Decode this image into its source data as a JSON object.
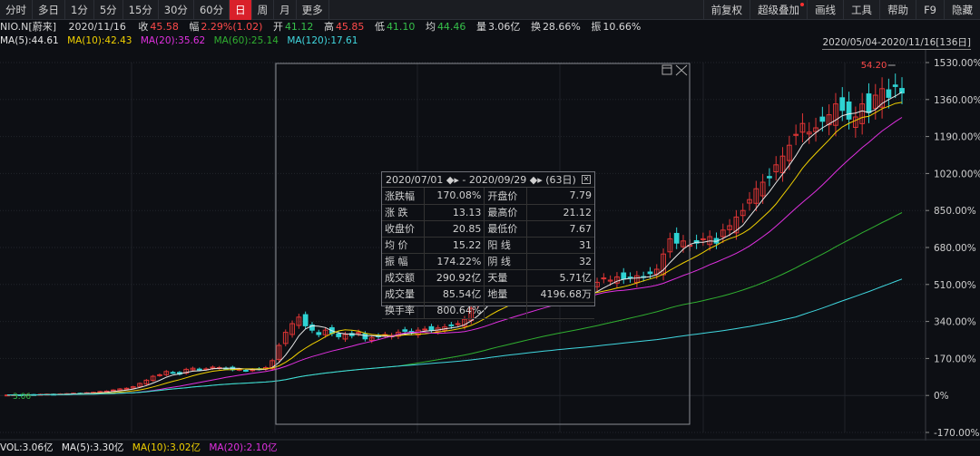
{
  "toolbar": {
    "periods": [
      "分时",
      "多日",
      "1分",
      "5分",
      "15分",
      "30分",
      "60分",
      "日",
      "周",
      "月",
      "更多"
    ],
    "active_period": "日",
    "right_items": [
      "前复权",
      "超级叠加",
      "画线",
      "工具",
      "帮助",
      "F9",
      "隐藏"
    ]
  },
  "quote": {
    "symbol": "NIO.N[蔚来]",
    "date": "2020/11/16",
    "close_label": "收",
    "close": "45.58",
    "change_label": "幅",
    "change": "2.29%(1.02)",
    "open_label": "开",
    "open": "41.12",
    "high_label": "高",
    "high": "45.85",
    "low_label": "低",
    "low": "41.10",
    "avg_label": "均",
    "avg": "44.46",
    "volume_label": "量",
    "volume": "3.06亿",
    "turnover_label": "换",
    "turnover": "28.66%",
    "amplitude_label": "振",
    "amplitude": "10.66%"
  },
  "ma_line": {
    "ma5": "MA(5):44.61",
    "ma10": "MA(10):42.43",
    "ma20": "MA(20):35.62",
    "ma60": "MA(60):25.14",
    "ma120": "MA(120):17.61"
  },
  "range_label": "2020/05/04-2020/11/16[136日]",
  "vol_line": {
    "vol": "VOL:3.06亿",
    "ma5": "MA(5):3.30亿",
    "ma10": "MA(10):3.02亿",
    "ma20": "MA(20):2.10亿"
  },
  "colors": {
    "up": "#ff4a4a",
    "down": "#36c04a",
    "candle_up": "#e03535",
    "candle_down": "#2fd3d3",
    "ma5": "#e8e8e8",
    "ma10": "#f0d000",
    "ma20": "#e030e0",
    "ma60": "#30b030",
    "ma120": "#40d8e0"
  },
  "popup": {
    "range": "2020/07/01 ◆▸ - 2020/09/29 ◆▸ (63日)",
    "rows": [
      {
        "k1": "涨跌幅",
        "v1": "170.08%",
        "c1": "r",
        "k2": "开盘价",
        "v2": "7.79",
        "c2": "r"
      },
      {
        "k1": "涨 跌",
        "v1": "13.13",
        "c1": "r",
        "k2": "最高价",
        "v2": "21.12",
        "c2": "r"
      },
      {
        "k1": "收盘价",
        "v1": "20.85",
        "c1": "r",
        "k2": "最低价",
        "v2": "7.67",
        "c2": "r"
      },
      {
        "k1": "均 价",
        "v1": "15.22",
        "c1": "r",
        "k2": "阳 线",
        "v2": "31",
        "c2": "r"
      },
      {
        "k1": "振 幅",
        "v1": "174.22%",
        "c1": "r",
        "k2": "阴 线",
        "v2": "32",
        "c2": "g"
      },
      {
        "k1": "成交额",
        "v1": "290.92亿",
        "c1": "w",
        "k2": "天量",
        "v2": "5.71亿",
        "c2": "w"
      },
      {
        "k1": "成交量",
        "v1": "85.54亿",
        "c1": "w",
        "k2": "地量",
        "v2": "4196.68万",
        "c2": "w"
      },
      {
        "k1": "换手率",
        "v1": "800.64%",
        "c1": "w",
        "k2": "",
        "v2": "",
        "c2": "w"
      }
    ]
  },
  "chart_data": {
    "type": "candlestick",
    "y_axis_labels": [
      "1530.00%",
      "1360.00%",
      "1190.00%",
      "1020.00%",
      "850.00%",
      "680.00%",
      "510.00%",
      "340.00%",
      "170.00%",
      "0%",
      "-170.00%"
    ],
    "y_axis_values": [
      1530,
      1360,
      1190,
      1020,
      850,
      680,
      510,
      340,
      170,
      0,
      -170
    ],
    "ylim": [
      -170,
      1530
    ],
    "peak_label": "54.20",
    "start_label": "3.06",
    "sessions": 136,
    "closes_pct": [
      2,
      3,
      1,
      4,
      3,
      5,
      6,
      4,
      7,
      8,
      10,
      9,
      12,
      14,
      18,
      20,
      25,
      30,
      33,
      40,
      55,
      70,
      88,
      95,
      110,
      105,
      98,
      120,
      125,
      118,
      122,
      130,
      128,
      125,
      118,
      120,
      115,
      118,
      122,
      128,
      160,
      230,
      290,
      330,
      360,
      320,
      300,
      280,
      300,
      285,
      270,
      280,
      275,
      290,
      260,
      265,
      270,
      280,
      275,
      290,
      295,
      290,
      300,
      305,
      300,
      310,
      315,
      320,
      330,
      350,
      400,
      430,
      460,
      500,
      470,
      450,
      460,
      470,
      455,
      470,
      480,
      465,
      470,
      475,
      460,
      455,
      450,
      470,
      490,
      520,
      540,
      530,
      545,
      535,
      540,
      550,
      545,
      560,
      580,
      650,
      720,
      700,
      710,
      690,
      700,
      720,
      730,
      700,
      760,
      780,
      820,
      850,
      900,
      950,
      980,
      1000,
      1060,
      1100,
      1150,
      1200,
      1250,
      1210,
      1230,
      1260,
      1290,
      1340,
      1310,
      1270,
      1280,
      1340,
      1300,
      1380,
      1410,
      1370,
      1420,
      1390
    ],
    "series": [
      {
        "name": "MA(5)",
        "color": "#e8e8e8"
      },
      {
        "name": "MA(10)",
        "color": "#f0d000"
      },
      {
        "name": "MA(20)",
        "color": "#e030e0"
      },
      {
        "name": "MA(60)",
        "color": "#30b030"
      },
      {
        "name": "MA(120)",
        "color": "#40d8e0"
      }
    ]
  }
}
